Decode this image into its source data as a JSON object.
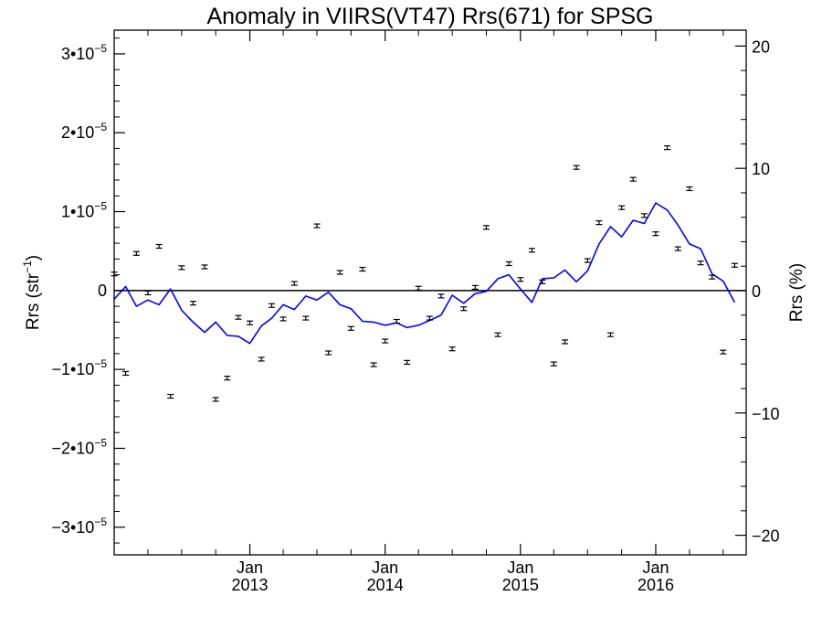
{
  "chart_data": {
    "type": "scatter",
    "title": "Anomaly in VIIRS(VT47) Rrs(671) for SPSG",
    "ylabel_left": "Rrs (str⁻¹)",
    "ylabel_right": "Rrs (%)",
    "x_range": [
      "2012-01-01",
      "2016-09-01"
    ],
    "y_left_range": [
      -3.35e-05,
      3.3e-05
    ],
    "y_right_range": [
      -21.6,
      21.3
    ],
    "x_ticks": [
      {
        "date": "2013-01-01",
        "label_month": "Jan",
        "label_year": "2013"
      },
      {
        "date": "2014-01-01",
        "label_month": "Jan",
        "label_year": "2014"
      },
      {
        "date": "2015-01-01",
        "label_month": "Jan",
        "label_year": "2015"
      },
      {
        "date": "2016-01-01",
        "label_month": "Jan",
        "label_year": "2016"
      }
    ],
    "y_left_ticks": [
      {
        "value": 3e-05,
        "mantissa": "3•10",
        "exponent": "−5"
      },
      {
        "value": 2e-05,
        "mantissa": "2•10",
        "exponent": "−5"
      },
      {
        "value": 1e-05,
        "mantissa": "1•10",
        "exponent": "−5"
      },
      {
        "value": 0,
        "mantissa": "0",
        "exponent": ""
      },
      {
        "value": -1e-05,
        "mantissa": "−1•10",
        "exponent": "−5"
      },
      {
        "value": -2e-05,
        "mantissa": "−2•10",
        "exponent": "−5"
      },
      {
        "value": -3e-05,
        "mantissa": "−3•10",
        "exponent": "−5"
      }
    ],
    "y_right_ticks": [
      {
        "value": 20,
        "label": "20"
      },
      {
        "value": 10,
        "label": "10"
      },
      {
        "value": 0,
        "label": "0"
      },
      {
        "value": -10,
        "label": "−10"
      },
      {
        "value": -20,
        "label": "−20"
      }
    ],
    "zero_line": true,
    "series": [
      {
        "type": "scatter_errorbar",
        "color": "#000000",
        "points": [
          {
            "x": "2012-01-01",
            "y": 2.1e-06
          },
          {
            "x": "2012-02-01",
            "y": -1.05e-05
          },
          {
            "x": "2012-03-01",
            "y": 4.7e-06
          },
          {
            "x": "2012-04-01",
            "y": -3e-07
          },
          {
            "x": "2012-05-01",
            "y": 5.6e-06
          },
          {
            "x": "2012-06-01",
            "y": -1.34e-05
          },
          {
            "x": "2012-07-01",
            "y": 2.9e-06
          },
          {
            "x": "2012-08-01",
            "y": -1.6e-06
          },
          {
            "x": "2012-09-01",
            "y": 3e-06
          },
          {
            "x": "2012-10-01",
            "y": -1.38e-05
          },
          {
            "x": "2012-11-01",
            "y": -1.11e-05
          },
          {
            "x": "2012-12-01",
            "y": -3.4e-06
          },
          {
            "x": "2013-01-01",
            "y": -4.1e-06
          },
          {
            "x": "2013-02-01",
            "y": -8.7e-06
          },
          {
            "x": "2013-03-01",
            "y": -1.9e-06
          },
          {
            "x": "2013-04-01",
            "y": -3.6e-06
          },
          {
            "x": "2013-05-01",
            "y": 9e-07
          },
          {
            "x": "2013-06-01",
            "y": -3.5e-06
          },
          {
            "x": "2013-07-01",
            "y": 8.2e-06
          },
          {
            "x": "2013-08-01",
            "y": -7.9e-06
          },
          {
            "x": "2013-09-01",
            "y": 2.3e-06
          },
          {
            "x": "2013-10-01",
            "y": -4.8e-06
          },
          {
            "x": "2013-11-01",
            "y": 2.7e-06
          },
          {
            "x": "2013-12-01",
            "y": -9.4e-06
          },
          {
            "x": "2014-01-01",
            "y": -6.4e-06
          },
          {
            "x": "2014-02-01",
            "y": -3.9e-06
          },
          {
            "x": "2014-03-01",
            "y": -9.1e-06
          },
          {
            "x": "2014-04-01",
            "y": 3e-07
          },
          {
            "x": "2014-05-01",
            "y": -3.5e-06
          },
          {
            "x": "2014-06-01",
            "y": -7e-07
          },
          {
            "x": "2014-07-01",
            "y": -7.4e-06
          },
          {
            "x": "2014-08-01",
            "y": -2.3e-06
          },
          {
            "x": "2014-09-01",
            "y": 4e-07
          },
          {
            "x": "2014-10-01",
            "y": 8e-06
          },
          {
            "x": "2014-11-01",
            "y": -5.6e-06
          },
          {
            "x": "2014-12-01",
            "y": 3.4e-06
          },
          {
            "x": "2015-01-01",
            "y": 1.4e-06
          },
          {
            "x": "2015-02-01",
            "y": 5.1e-06
          },
          {
            "x": "2015-03-01",
            "y": 1.1e-06
          },
          {
            "x": "2015-04-01",
            "y": -9.3e-06
          },
          {
            "x": "2015-05-01",
            "y": -6.5e-06
          },
          {
            "x": "2015-06-01",
            "y": 1.56e-05
          },
          {
            "x": "2015-07-01",
            "y": 3.8e-06
          },
          {
            "x": "2015-08-01",
            "y": 8.6e-06
          },
          {
            "x": "2015-09-01",
            "y": -5.6e-06
          },
          {
            "x": "2015-10-01",
            "y": 1.05e-05
          },
          {
            "x": "2015-11-01",
            "y": 1.41e-05
          },
          {
            "x": "2015-12-01",
            "y": 9.5e-06
          },
          {
            "x": "2016-01-01",
            "y": 7.2e-06
          },
          {
            "x": "2016-02-01",
            "y": 1.81e-05
          },
          {
            "x": "2016-03-01",
            "y": 5.3e-06
          },
          {
            "x": "2016-04-01",
            "y": 1.29e-05
          },
          {
            "x": "2016-05-01",
            "y": 3.5e-06
          },
          {
            "x": "2016-06-01",
            "y": 1.7e-06
          },
          {
            "x": "2016-07-01",
            "y": -7.8e-06
          },
          {
            "x": "2016-08-01",
            "y": 3.2e-06
          }
        ]
      },
      {
        "type": "line",
        "color": "#0000ff",
        "points": [
          {
            "x": "2012-01-01",
            "y": -1.1e-06
          },
          {
            "x": "2012-02-01",
            "y": 5e-07
          },
          {
            "x": "2012-03-01",
            "y": -2e-06
          },
          {
            "x": "2012-04-01",
            "y": -1.2e-06
          },
          {
            "x": "2012-05-01",
            "y": -1.8e-06
          },
          {
            "x": "2012-06-01",
            "y": 2e-07
          },
          {
            "x": "2012-07-01",
            "y": -2.5e-06
          },
          {
            "x": "2012-08-01",
            "y": -4e-06
          },
          {
            "x": "2012-09-01",
            "y": -5.3e-06
          },
          {
            "x": "2012-10-01",
            "y": -4e-06
          },
          {
            "x": "2012-11-01",
            "y": -5.7e-06
          },
          {
            "x": "2012-12-01",
            "y": -5.8e-06
          },
          {
            "x": "2013-01-01",
            "y": -6.7e-06
          },
          {
            "x": "2013-02-01",
            "y": -4.5e-06
          },
          {
            "x": "2013-03-01",
            "y": -3.5e-06
          },
          {
            "x": "2013-04-01",
            "y": -1.8e-06
          },
          {
            "x": "2013-05-01",
            "y": -2.4e-06
          },
          {
            "x": "2013-06-01",
            "y": -7e-07
          },
          {
            "x": "2013-07-01",
            "y": -1.2e-06
          },
          {
            "x": "2013-08-01",
            "y": -2e-07
          },
          {
            "x": "2013-09-01",
            "y": -1.8e-06
          },
          {
            "x": "2013-10-01",
            "y": -2.3e-06
          },
          {
            "x": "2013-11-01",
            "y": -3.9e-06
          },
          {
            "x": "2013-12-01",
            "y": -4e-06
          },
          {
            "x": "2014-01-01",
            "y": -4.4e-06
          },
          {
            "x": "2014-02-01",
            "y": -4.1e-06
          },
          {
            "x": "2014-03-01",
            "y": -4.7e-06
          },
          {
            "x": "2014-04-01",
            "y": -4.4e-06
          },
          {
            "x": "2014-05-01",
            "y": -3.8e-06
          },
          {
            "x": "2014-06-01",
            "y": -3.1e-06
          },
          {
            "x": "2014-07-01",
            "y": -6e-07
          },
          {
            "x": "2014-08-01",
            "y": -1.6e-06
          },
          {
            "x": "2014-09-01",
            "y": -4e-07
          },
          {
            "x": "2014-10-01",
            "y": -1e-07
          },
          {
            "x": "2014-11-01",
            "y": 1.5e-06
          },
          {
            "x": "2014-12-01",
            "y": 2e-06
          },
          {
            "x": "2015-01-01",
            "y": 2e-07
          },
          {
            "x": "2015-02-01",
            "y": -1.5e-06
          },
          {
            "x": "2015-03-01",
            "y": 1.5e-06
          },
          {
            "x": "2015-04-01",
            "y": 1.6e-06
          },
          {
            "x": "2015-05-01",
            "y": 2.6e-06
          },
          {
            "x": "2015-06-01",
            "y": 1.1e-06
          },
          {
            "x": "2015-07-01",
            "y": 2.5e-06
          },
          {
            "x": "2015-08-01",
            "y": 5.9e-06
          },
          {
            "x": "2015-09-01",
            "y": 8.1e-06
          },
          {
            "x": "2015-10-01",
            "y": 6.8e-06
          },
          {
            "x": "2015-11-01",
            "y": 8.9e-06
          },
          {
            "x": "2015-12-01",
            "y": 8.5e-06
          },
          {
            "x": "2016-01-01",
            "y": 1.11e-05
          },
          {
            "x": "2016-02-01",
            "y": 1.02e-05
          },
          {
            "x": "2016-03-01",
            "y": 8.3e-06
          },
          {
            "x": "2016-04-01",
            "y": 5.9e-06
          },
          {
            "x": "2016-05-01",
            "y": 5.3e-06
          },
          {
            "x": "2016-06-01",
            "y": 2.1e-06
          },
          {
            "x": "2016-07-01",
            "y": 1.2e-06
          },
          {
            "x": "2016-08-01",
            "y": -1.5e-06
          }
        ]
      }
    ]
  }
}
